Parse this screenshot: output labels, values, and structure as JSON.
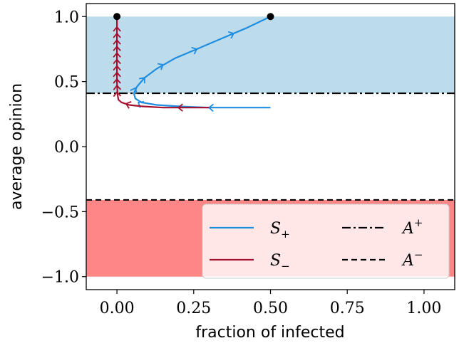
{
  "chart_data": {
    "type": "line",
    "xlabel": "fraction of infected",
    "ylabel": "average opinion",
    "xlim": [
      -0.1,
      1.1
    ],
    "ylim": [
      -1.1,
      1.1
    ],
    "xticks": [
      0.0,
      0.25,
      0.5,
      0.75,
      1.0
    ],
    "xtick_labels": [
      "0.00",
      "0.25",
      "0.50",
      "0.75",
      "1.00"
    ],
    "yticks": [
      -1.0,
      -0.5,
      0.0,
      0.5,
      1.0
    ],
    "ytick_labels": [
      "−1.0",
      "−0.5",
      "0.0",
      "0.5",
      "1.0"
    ],
    "grid": false,
    "legend_placement": "lower-right",
    "regions": [
      {
        "name": "upper-band",
        "y_from": 0.41,
        "y_to": 1.0,
        "color": "#bcdcec"
      },
      {
        "name": "lower-band",
        "y_from": -1.0,
        "y_to": -0.41,
        "color": "#fe8686"
      }
    ],
    "hlines": [
      {
        "name": "A+",
        "label": "A",
        "sup": "+",
        "y": 0.41,
        "style": "dashdot",
        "color": "#000000"
      },
      {
        "name": "A-",
        "label": "A",
        "sup": "−",
        "y": -0.41,
        "style": "dashed",
        "color": "#000000"
      }
    ],
    "series": [
      {
        "name": "S+",
        "label": "S",
        "sub": "+",
        "color": "#1f8de0",
        "points": [
          [
            0.5,
            0.3
          ],
          [
            0.42,
            0.3
          ],
          [
            0.3,
            0.3
          ],
          [
            0.2,
            0.31
          ],
          [
            0.13,
            0.32
          ],
          [
            0.08,
            0.34
          ],
          [
            0.06,
            0.37
          ],
          [
            0.055,
            0.41
          ],
          [
            0.065,
            0.46
          ],
          [
            0.09,
            0.53
          ],
          [
            0.13,
            0.6
          ],
          [
            0.19,
            0.68
          ],
          [
            0.26,
            0.75
          ],
          [
            0.34,
            0.83
          ],
          [
            0.42,
            0.91
          ],
          [
            0.5,
            1.0
          ]
        ],
        "arrows": [
          [
            0.3,
            0.3
          ],
          [
            0.07,
            0.34
          ],
          [
            0.06,
            0.45
          ],
          [
            0.09,
            0.53
          ],
          [
            0.15,
            0.63
          ],
          [
            0.26,
            0.75
          ],
          [
            0.38,
            0.87
          ]
        ]
      },
      {
        "name": "S-",
        "label": "S",
        "sub": "−",
        "color": "#a50f2d",
        "points": [
          [
            0.3,
            0.3
          ],
          [
            0.22,
            0.3
          ],
          [
            0.15,
            0.3
          ],
          [
            0.08,
            0.31
          ],
          [
            0.04,
            0.32
          ],
          [
            0.015,
            0.34
          ],
          [
            0.005,
            0.36
          ],
          [
            0.002,
            0.4
          ],
          [
            0.0,
            0.5
          ],
          [
            0.0,
            0.6
          ],
          [
            0.0,
            0.7
          ],
          [
            0.0,
            0.8
          ],
          [
            0.0,
            0.9
          ],
          [
            0.0,
            1.0
          ]
        ],
        "arrows": [
          [
            0.2,
            0.3
          ],
          [
            0.03,
            0.33
          ],
          [
            0.0,
            0.42
          ],
          [
            0.0,
            0.47
          ],
          [
            0.0,
            0.52
          ],
          [
            0.0,
            0.57
          ],
          [
            0.0,
            0.62
          ],
          [
            0.0,
            0.67
          ],
          [
            0.0,
            0.72
          ],
          [
            0.0,
            0.77
          ],
          [
            0.0,
            0.82
          ],
          [
            0.0,
            0.87
          ],
          [
            0.0,
            0.92
          ]
        ]
      }
    ],
    "endpoints": [
      [
        0.0,
        1.0
      ],
      [
        0.5,
        1.0
      ]
    ]
  }
}
